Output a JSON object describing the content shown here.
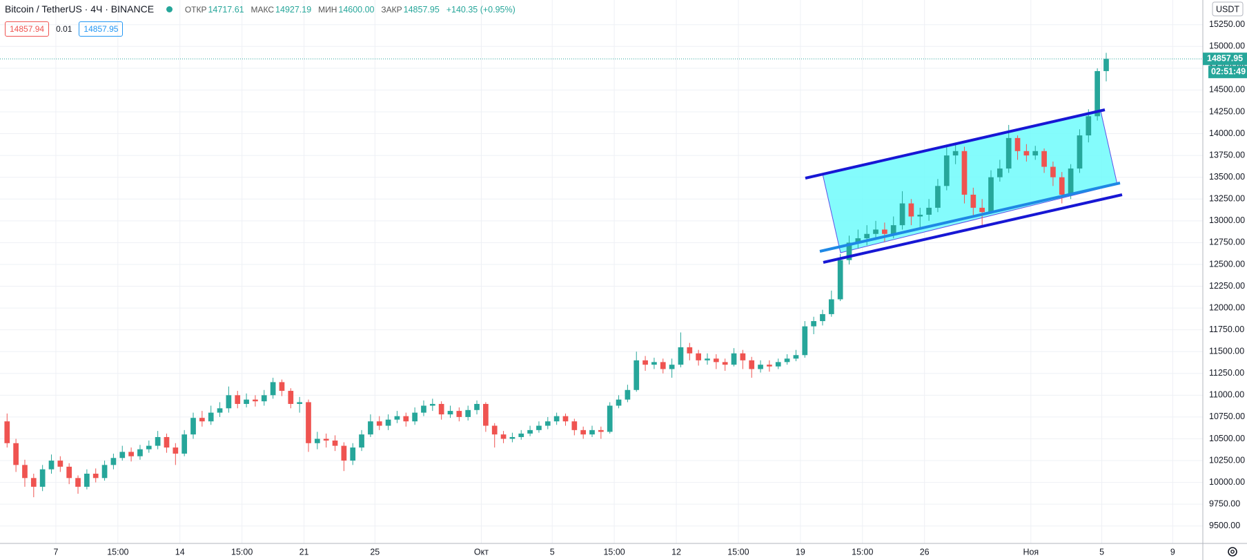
{
  "header": {
    "symbol": "Bitcoin / TetherUS · 4Ч · BINANCE",
    "open_label": "ОТКР",
    "open": "14717.61",
    "high_label": "МАКС",
    "high": "14927.19",
    "low_label": "МИН",
    "low": "14600.00",
    "close_label": "ЗАКР",
    "close": "14857.95",
    "change": "+140.35 (+0.95%)",
    "sell": "14857.94",
    "spread": "0.01",
    "buy": "14857.95"
  },
  "chart_data": {
    "type": "candlestick",
    "currency": "USDT",
    "countdown": "02:51:49",
    "up_color": "#26a69a",
    "down_color": "#ef5350",
    "grid": true,
    "xlim": [
      -0.8,
      134.9
    ],
    "ylim": [
      9300,
      15533
    ],
    "xticks": [
      {
        "value": 5.5,
        "label": "7"
      },
      {
        "value": 12.5,
        "label": "15:00"
      },
      {
        "value": 19.5,
        "label": "14"
      },
      {
        "value": 26.5,
        "label": "15:00"
      },
      {
        "value": 33.5,
        "label": "21"
      },
      {
        "value": 41.5,
        "label": "25"
      },
      {
        "value": 53.5,
        "label": "Окт"
      },
      {
        "value": 61.5,
        "label": "5"
      },
      {
        "value": 68.5,
        "label": "15:00"
      },
      {
        "value": 75.5,
        "label": "12"
      },
      {
        "value": 82.5,
        "label": "15:00"
      },
      {
        "value": 89.5,
        "label": "19"
      },
      {
        "value": 96.5,
        "label": "15:00"
      },
      {
        "value": 103.5,
        "label": "26"
      },
      {
        "value": 115.5,
        "label": "Ноя"
      },
      {
        "value": 123.5,
        "label": "5"
      },
      {
        "value": 131.5,
        "label": "9"
      }
    ],
    "yticks": [
      {
        "value": 9500,
        "label": "9500.00"
      },
      {
        "value": 9750,
        "label": "9750.00"
      },
      {
        "value": 10000,
        "label": "10000.00"
      },
      {
        "value": 10250,
        "label": "10250.00"
      },
      {
        "value": 10500,
        "label": "10500.00"
      },
      {
        "value": 10750,
        "label": "10750.00"
      },
      {
        "value": 11000,
        "label": "11000.00"
      },
      {
        "value": 11250,
        "label": "11250.00"
      },
      {
        "value": 11500,
        "label": "11500.00"
      },
      {
        "value": 11750,
        "label": "11750.00"
      },
      {
        "value": 12000,
        "label": "12000.00"
      },
      {
        "value": 12250,
        "label": "12250.00"
      },
      {
        "value": 12500,
        "label": "12500.00"
      },
      {
        "value": 12750,
        "label": "12750.00"
      },
      {
        "value": 13000,
        "label": "13000.00"
      },
      {
        "value": 13250,
        "label": "13250.00"
      },
      {
        "value": 13500,
        "label": "13500.00"
      },
      {
        "value": 13750,
        "label": "13750.00"
      },
      {
        "value": 14000,
        "label": "14000.00"
      },
      {
        "value": 14250,
        "label": "14250.00"
      },
      {
        "value": 14500,
        "label": "14500.00"
      },
      {
        "value": 14750,
        "label": "14750.00"
      },
      {
        "value": 15000,
        "label": "15000.00"
      },
      {
        "value": 15250,
        "label": "15250.00"
      }
    ],
    "open": [
      10700,
      10450,
      10200,
      10050,
      9950,
      10150,
      10250,
      10180,
      10050,
      9950,
      10100,
      10050,
      10200,
      10280,
      10350,
      10300,
      10380,
      10420,
      10520,
      10400,
      10330,
      10550,
      10740,
      10700,
      10800,
      10850,
      11000,
      10900,
      10950,
      10930,
      11000,
      11150,
      11050,
      10900,
      10920,
      10450,
      10500,
      10480,
      10420,
      10250,
      10400,
      10550,
      10700,
      10650,
      10720,
      10760,
      10700,
      10800,
      10880,
      10900,
      10780,
      10820,
      10750,
      10830,
      10900,
      10650,
      10550,
      10500,
      10520,
      10560,
      10600,
      10650,
      10700,
      10760,
      10700,
      10600,
      10550,
      10600,
      10580,
      10880,
      10950,
      11060,
      11400,
      11350,
      11380,
      11300,
      11350,
      11550,
      11480,
      11400,
      11420,
      11380,
      11350,
      11480,
      11400,
      11300,
      11350,
      11330,
      11380,
      11420,
      11460,
      11790,
      11850,
      11930,
      12100,
      12550,
      12750,
      12800,
      12850,
      12900,
      12850,
      12950,
      13200,
      13050,
      13070,
      13150,
      13400,
      13750,
      13800,
      13300,
      13150,
      13100,
      13500,
      13600,
      13950,
      13800,
      13750,
      13800,
      13620,
      13500,
      13300,
      13600,
      13980,
      14200,
      14717.61
    ],
    "high": [
      10790,
      10500,
      10260,
      10100,
      10200,
      10320,
      10300,
      10220,
      10080,
      10150,
      10160,
      10250,
      10330,
      10420,
      10400,
      10430,
      10480,
      10590,
      10560,
      10450,
      10600,
      10800,
      10820,
      10880,
      10920,
      11100,
      11050,
      11020,
      11000,
      11060,
      11200,
      11180,
      11080,
      10980,
      10950,
      10580,
      10560,
      10540,
      10460,
      10450,
      10600,
      10780,
      10760,
      10780,
      10820,
      10800,
      10860,
      10940,
      10960,
      10930,
      10880,
      10860,
      10880,
      10940,
      10920,
      10680,
      10590,
      10570,
      10600,
      10650,
      10700,
      10750,
      10800,
      10790,
      10730,
      10640,
      10650,
      10640,
      10920,
      11000,
      11120,
      11500,
      11450,
      11430,
      11420,
      11420,
      11720,
      11600,
      11520,
      11480,
      11470,
      11420,
      11540,
      11520,
      11440,
      11400,
      11400,
      11420,
      11470,
      11520,
      11850,
      11900,
      11980,
      12200,
      12620,
      12830,
      12900,
      12950,
      13000,
      12980,
      13050,
      13340,
      13250,
      13150,
      13250,
      13480,
      13850,
      13880,
      13850,
      13380,
      13250,
      13580,
      13700,
      14100,
      13980,
      13880,
      13860,
      13830,
      13680,
      13560,
      13650,
      14050,
      14280,
      14750,
      14927.19
    ],
    "low": [
      10400,
      10120,
      9950,
      9830,
      9900,
      10100,
      10120,
      9980,
      9870,
      9920,
      10000,
      10020,
      10150,
      10250,
      10240,
      10260,
      10340,
      10380,
      10340,
      10200,
      10300,
      10500,
      10640,
      10660,
      10750,
      10800,
      10850,
      10860,
      10870,
      10880,
      10960,
      10990,
      10850,
      10800,
      10350,
      10380,
      10400,
      10360,
      10130,
      10200,
      10360,
      10520,
      10600,
      10600,
      10680,
      10640,
      10660,
      10760,
      10820,
      10720,
      10740,
      10700,
      10710,
      10780,
      10580,
      10400,
      10450,
      10460,
      10490,
      10530,
      10570,
      10610,
      10660,
      10650,
      10540,
      10500,
      10520,
      10500,
      10560,
      10850,
      10920,
      11040,
      11280,
      11300,
      11250,
      11200,
      11320,
      11400,
      11340,
      11350,
      11300,
      11280,
      11330,
      11300,
      11200,
      11260,
      11270,
      11300,
      11350,
      11390,
      11430,
      11700,
      11800,
      11900,
      12080,
      12500,
      12680,
      12720,
      12780,
      12760,
      12800,
      12900,
      12950,
      12900,
      13000,
      13100,
      13350,
      13650,
      13200,
      13050,
      12950,
      13080,
      13450,
      13550,
      13700,
      13680,
      13700,
      13550,
      13400,
      13200,
      13250,
      13550,
      13900,
      14150,
      14600
    ],
    "close": [
      10450,
      10200,
      10050,
      9950,
      10150,
      10250,
      10180,
      10050,
      9950,
      10100,
      10050,
      10200,
      10280,
      10350,
      10300,
      10380,
      10420,
      10520,
      10400,
      10330,
      10550,
      10740,
      10700,
      10800,
      10850,
      11000,
      10900,
      10950,
      10930,
      11000,
      11150,
      11050,
      10900,
      10920,
      10450,
      10500,
      10480,
      10420,
      10250,
      10400,
      10550,
      10700,
      10650,
      10720,
      10760,
      10700,
      10800,
      10880,
      10900,
      10780,
      10820,
      10750,
      10830,
      10900,
      10650,
      10550,
      10500,
      10520,
      10560,
      10600,
      10650,
      10700,
      10760,
      10700,
      10600,
      10550,
      10600,
      10580,
      10880,
      10950,
      11060,
      11400,
      11350,
      11380,
      11300,
      11350,
      11550,
      11480,
      11400,
      11420,
      11380,
      11350,
      11480,
      11400,
      11300,
      11350,
      11330,
      11380,
      11420,
      11460,
      11790,
      11850,
      11930,
      12100,
      12550,
      12750,
      12800,
      12850,
      12900,
      12850,
      12950,
      13200,
      13050,
      13070,
      13150,
      13400,
      13750,
      13800,
      13300,
      13150,
      13100,
      13500,
      13600,
      13950,
      13800,
      13750,
      13800,
      13620,
      13500,
      13300,
      13600,
      13980,
      14200,
      14717.61,
      14857.95
    ]
  }
}
